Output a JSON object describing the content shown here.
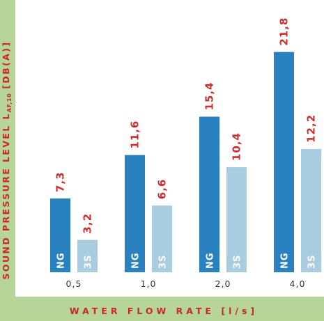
{
  "chart_data": {
    "type": "bar",
    "ylabel_main": "SOUND PRESSURE LEVEL L",
    "ylabel_sub": "AF,10",
    "ylabel_unit": "[DB(A)]",
    "xlabel": "WATER FLOW RATE [l/s]",
    "categories": [
      "0,5",
      "1,0",
      "2,0",
      "4,0"
    ],
    "series": [
      {
        "name": "NG",
        "values": [
          7.3,
          11.6,
          15.4,
          21.8
        ],
        "labels": [
          "7,3",
          "11,6",
          "15,4",
          "21,8"
        ],
        "color": "#2a81c0"
      },
      {
        "name": "3S",
        "values": [
          3.2,
          6.6,
          10.4,
          12.2
        ],
        "labels": [
          "3,2",
          "6,6",
          "10,4",
          "12,2"
        ],
        "color": "#a8cde0"
      }
    ],
    "ylim": [
      0,
      23.5
    ],
    "grid": false,
    "legend": "none",
    "value_label_color": "#cc2d2d",
    "axis_title_color": "#c62828"
  }
}
